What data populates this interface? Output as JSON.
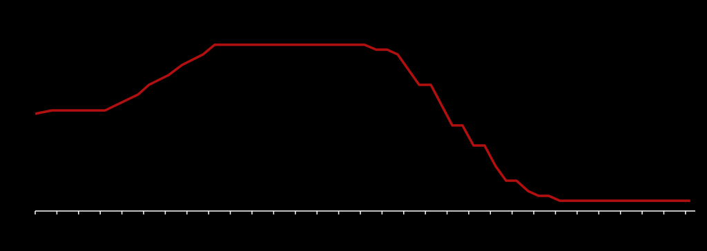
{
  "chart_data": {
    "type": "line",
    "x": [
      0,
      0.76,
      3.22,
      4.75,
      5.25,
      6.15,
      6.78,
      7.74,
      8.28,
      15.19,
      15.73,
      16.24,
      16.72,
      17.71,
      18.25,
      19.24,
      19.71,
      20.22,
      20.73,
      21.24,
      21.72,
      22.2,
      22.74,
      23.22,
      23.69,
      24.2,
      30.22
    ],
    "values": [
      49.3,
      51,
      51,
      59.1,
      64,
      68.9,
      74.1,
      79.4,
      84.3,
      84.3,
      81.8,
      81.8,
      79.4,
      64,
      64,
      43.4,
      43.4,
      33.2,
      33.2,
      22.7,
      15.4,
      15.4,
      10.1,
      7.7,
      7.7,
      5.2,
      5.2
    ],
    "color": "#b30f0f",
    "xlim": [
      0,
      30.45
    ],
    "ylim": [
      0,
      100
    ],
    "xticks": [
      0,
      1,
      2,
      3,
      4,
      5,
      6,
      7,
      8,
      9,
      10,
      11,
      12,
      13,
      14,
      15,
      16,
      17,
      18,
      19,
      20,
      21,
      22,
      23,
      24,
      25,
      26,
      27,
      28,
      29,
      30
    ],
    "axis_color": "#ffffff"
  }
}
